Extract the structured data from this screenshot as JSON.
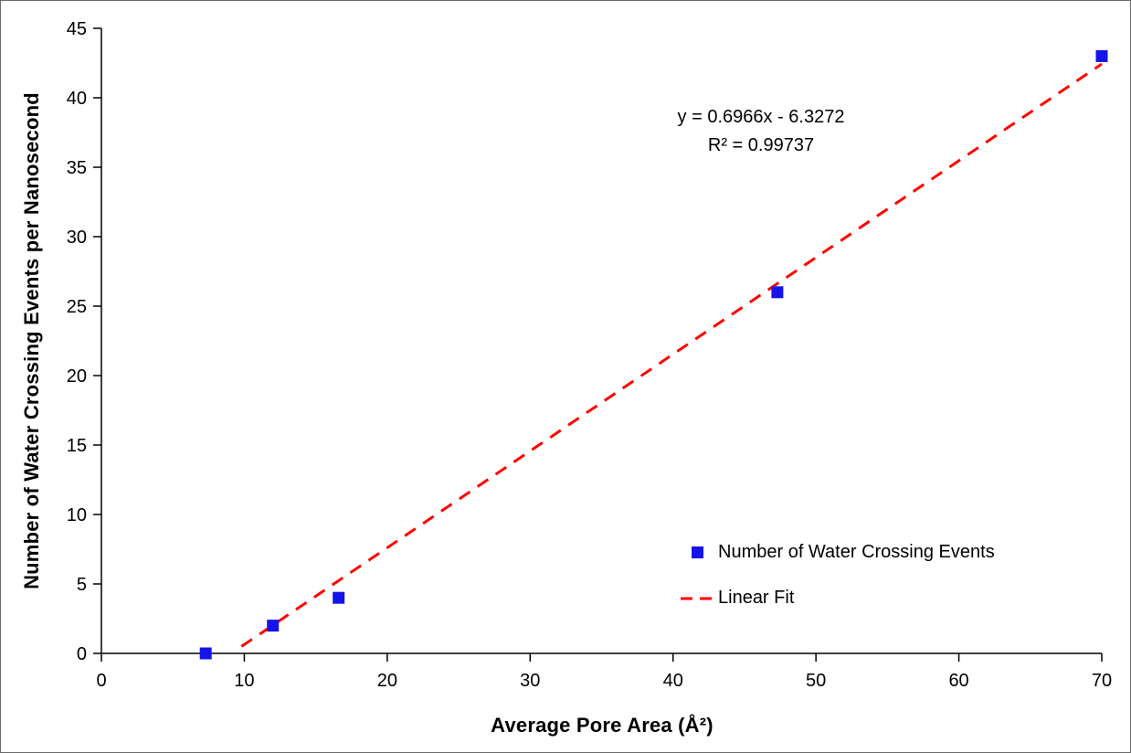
{
  "chart_data": {
    "type": "scatter",
    "title": "",
    "xlabel": "Average Pore Area (Å²)",
    "ylabel": "Number of Water Crossing Events per Nanosecond",
    "xlim": [
      0,
      70
    ],
    "ylim": [
      0,
      45
    ],
    "x_ticks": [
      0,
      10,
      20,
      30,
      40,
      50,
      60,
      70
    ],
    "y_ticks": [
      0,
      5,
      10,
      15,
      20,
      25,
      30,
      35,
      40,
      45
    ],
    "grid": false,
    "legend_position": "inside-lower-right",
    "series": [
      {
        "name": "Number of Water Crossing Events",
        "type": "scatter",
        "marker": "square",
        "color": "#1414e8",
        "points": [
          [
            7.3,
            0
          ],
          [
            12,
            2
          ],
          [
            16.6,
            4
          ],
          [
            47.3,
            26
          ],
          [
            70,
            43
          ]
        ]
      },
      {
        "name": "Linear Fit",
        "type": "line",
        "style": "dashed",
        "color": "#ff0000",
        "slope": 0.6966,
        "intercept": -6.3272,
        "x_range": [
          9.8,
          70
        ]
      }
    ],
    "annotations": [
      "y = 0.6966x - 6.3272",
      "R² = 0.99737"
    ],
    "axis_color": "#000000"
  }
}
